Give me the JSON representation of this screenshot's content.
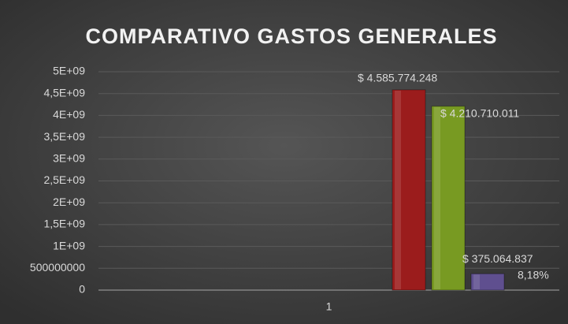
{
  "chart_data": {
    "type": "bar",
    "title": "COMPARATIVO GASTOS GENERALES",
    "categories": [
      "1"
    ],
    "series": [
      {
        "color": "#9b1c1c",
        "values": [
          4585774248
        ],
        "value_labels": [
          "$ 4.585.774.248"
        ]
      },
      {
        "color": "#789a22",
        "values": [
          4210710011
        ],
        "value_labels": [
          "$ 4.210.710.011"
        ]
      },
      {
        "color": "#5f4f8f",
        "values": [
          375064837
        ],
        "value_labels": [
          "$ 375.064.837"
        ]
      },
      {
        "color": "#3f7fbf",
        "values": [
          8.18
        ],
        "value_labels": [
          "8,18%"
        ]
      }
    ],
    "ylim": [
      0,
      5000000000
    ],
    "yticks": [
      0,
      500000000,
      {
        "value": 1000000000,
        "label": "1E+09"
      },
      {
        "value": 1500000000,
        "label": "1,5E+09"
      },
      {
        "value": 2000000000,
        "label": "2E+09"
      },
      {
        "value": 2500000000,
        "label": "2,5E+09"
      },
      {
        "value": 3000000000,
        "label": "3E+09"
      },
      {
        "value": 3500000000,
        "label": "3,5E+09"
      },
      {
        "value": 4000000000,
        "label": "4E+09"
      },
      {
        "value": 4500000000,
        "label": "4,5E+09"
      },
      {
        "value": 5000000000,
        "label": "5E+09"
      }
    ],
    "grid": true
  }
}
